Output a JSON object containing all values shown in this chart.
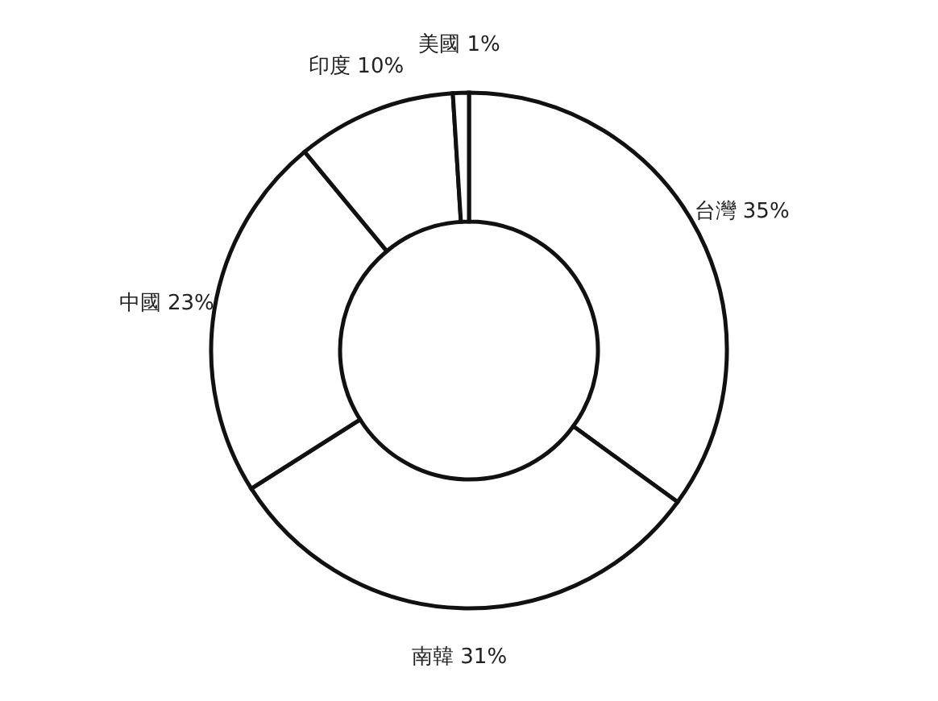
{
  "chart_data": {
    "type": "donut",
    "categories": [
      "台灣",
      "南韓",
      "中國",
      "印度",
      "美國"
    ],
    "values": [
      35,
      31,
      23,
      10,
      1
    ],
    "value_labels": [
      "35%",
      "31%",
      "23%",
      "10%",
      "1%"
    ],
    "colors": [
      "#ffffff",
      "#ffffff",
      "#ffffff",
      "#ffffff",
      "#ffffff"
    ]
  }
}
